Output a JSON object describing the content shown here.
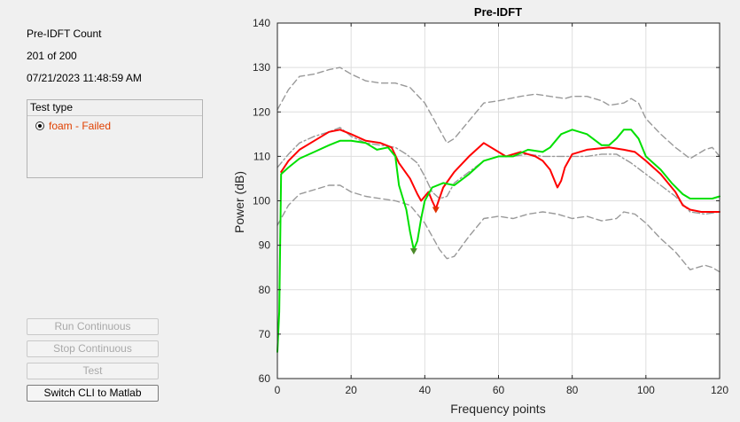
{
  "status": {
    "title": "Pre-IDFT Count",
    "count": "201 of 200",
    "timestamp": "07/21/2023 11:48:59 AM"
  },
  "test_type": {
    "label": "Test type",
    "option": "foam - Failed",
    "option_color": "#e04000"
  },
  "buttons": {
    "run": "Run Continuous",
    "stop": "Stop Continuous",
    "test": "Test",
    "switch": "Switch CLI to Matlab"
  },
  "chart_data": {
    "type": "line",
    "title": "Pre-IDFT",
    "xlabel": "Frequency points",
    "ylabel": "Power (dB)",
    "xlim": [
      0,
      120
    ],
    "ylim": [
      60,
      140
    ],
    "xticks": [
      0,
      20,
      40,
      60,
      80,
      100,
      120
    ],
    "yticks": [
      60,
      70,
      80,
      90,
      100,
      110,
      120,
      130,
      140
    ],
    "grid": true,
    "series": [
      {
        "color": "#ff0000",
        "style": "solid",
        "x": [
          1,
          3,
          6,
          10,
          14,
          17,
          20,
          24,
          28,
          31,
          33,
          36,
          38,
          39,
          40,
          41,
          42,
          43,
          45,
          48,
          52,
          56,
          60,
          62,
          64,
          66,
          70,
          72,
          74,
          76,
          77,
          78,
          80,
          84,
          90,
          94,
          97,
          100,
          104,
          108,
          110,
          112,
          115,
          118,
          120
        ],
        "y": [
          106.5,
          109,
          111.5,
          113.5,
          115.5,
          116,
          115,
          113.5,
          113,
          112,
          108.5,
          105,
          101.5,
          100,
          101,
          102,
          100,
          98.2,
          103,
          106.5,
          110,
          113,
          111,
          110,
          110.5,
          111,
          110,
          109,
          107,
          103,
          104.5,
          107.5,
          110.5,
          111.5,
          112,
          111.5,
          111,
          109,
          106,
          102,
          99,
          98,
          97.5,
          97.5,
          97.5
        ]
      },
      {
        "color": "#00e000",
        "style": "solid",
        "x": [
          0,
          0.5,
          1,
          3,
          6,
          10,
          14,
          17,
          20,
          24,
          27,
          30,
          32,
          33,
          35,
          36,
          37,
          38,
          39,
          40,
          42,
          45,
          48,
          52,
          56,
          60,
          64,
          68,
          72,
          74,
          77,
          80,
          84,
          88,
          90,
          92,
          94,
          96,
          98,
          100,
          104,
          107,
          110,
          112,
          115,
          118,
          120
        ],
        "y": [
          66,
          75,
          106,
          107.5,
          109.5,
          111,
          112.5,
          113.5,
          113.5,
          113,
          111.5,
          112,
          110,
          103.5,
          98,
          93,
          89,
          91,
          96,
          100,
          103,
          104,
          103.5,
          106,
          109,
          110,
          110,
          111.5,
          111,
          112,
          115,
          116,
          115,
          112.5,
          112.5,
          114,
          116,
          116,
          114,
          110,
          107,
          104,
          101.5,
          100.5,
          100.5,
          100.5,
          101
        ]
      },
      {
        "color": "#999999",
        "style": "dash",
        "x": [
          0,
          3,
          6,
          10,
          14,
          17,
          20,
          24,
          28,
          32,
          36,
          40,
          44,
          46,
          48,
          52,
          56,
          60,
          66,
          70,
          74,
          78,
          80,
          84,
          88,
          90,
          94,
          96,
          98,
          100,
          104,
          108,
          112,
          116,
          118,
          120
        ],
        "y": [
          120.5,
          125,
          128,
          128.5,
          129.5,
          130,
          128.5,
          127,
          126.5,
          126.5,
          125.5,
          122,
          116,
          113,
          114,
          118,
          122,
          122.5,
          123.5,
          124,
          123.5,
          123,
          123.5,
          123.5,
          122.5,
          121.5,
          122,
          123,
          122,
          118.5,
          115,
          112,
          109.5,
          111.5,
          112,
          110
        ]
      },
      {
        "color": "#999999",
        "style": "dash",
        "x": [
          0,
          3,
          6,
          10,
          14,
          17,
          20,
          24,
          28,
          32,
          36,
          40,
          44,
          46,
          48,
          52,
          56,
          60,
          64,
          68,
          72,
          76,
          80,
          84,
          88,
          92,
          94,
          97,
          100,
          104,
          108,
          112,
          116,
          118,
          120
        ],
        "y": [
          94.5,
          99,
          101.5,
          102.5,
          103.5,
          103.5,
          102,
          101,
          100.5,
          100,
          99,
          95,
          89,
          87,
          87.5,
          92,
          96,
          96.5,
          96,
          97,
          97.5,
          97,
          96,
          96.5,
          95.5,
          96,
          97.5,
          97,
          95,
          91.5,
          88.5,
          84.5,
          85.5,
          85,
          84
        ]
      },
      {
        "color": "#999999",
        "style": "dashdot",
        "x": [
          0,
          3,
          6,
          10,
          14,
          17,
          20,
          24,
          28,
          32,
          35,
          38,
          40,
          42,
          44,
          46,
          48,
          52,
          56,
          60,
          64,
          68,
          72,
          76,
          80,
          84,
          88,
          92,
          96,
          100,
          104,
          108,
          112,
          116,
          120
        ],
        "y": [
          107.5,
          110.5,
          113,
          114.5,
          115.5,
          116.5,
          114.5,
          113,
          112.5,
          112,
          110.5,
          108.5,
          105.5,
          102,
          100.5,
          101,
          104,
          106.5,
          109,
          110,
          110,
          110.5,
          110,
          110,
          110,
          110,
          110.5,
          110.5,
          108.5,
          106,
          103.5,
          101,
          97.5,
          97,
          97.5
        ]
      }
    ],
    "markers": [
      {
        "x": 37,
        "y": 88.5,
        "color": "#4c8a2a"
      },
      {
        "x": 43,
        "y": 97.8,
        "color": "#e03000"
      }
    ]
  }
}
